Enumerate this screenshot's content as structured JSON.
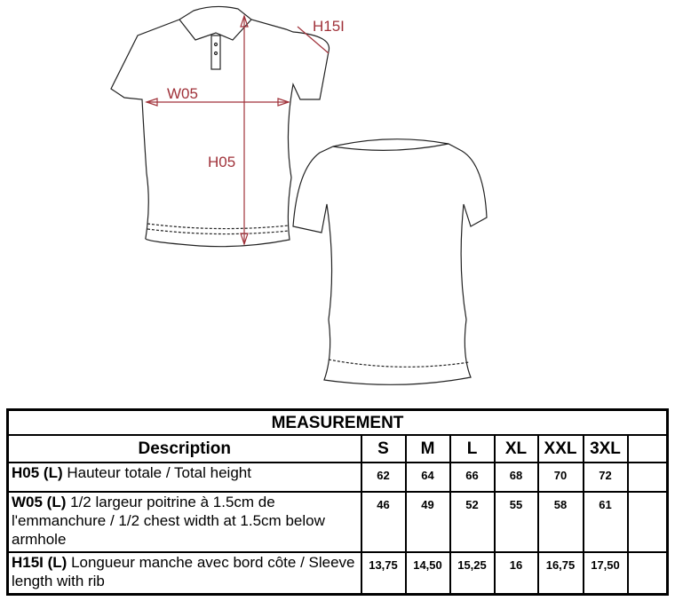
{
  "labels": {
    "h05": "H05",
    "w05": "W05",
    "h15l": "H15I"
  },
  "colors": {
    "measure": "#a0323a"
  },
  "table": {
    "title": "MEASUREMENT",
    "desc_header": "Description",
    "sizes": [
      "S",
      "M",
      "L",
      "XL",
      "XXL",
      "3XL",
      ""
    ],
    "rows": [
      {
        "code": "H05 (L)",
        "desc": " Hauteur totale / Total height",
        "values": [
          "62",
          "64",
          "66",
          "68",
          "70",
          "72",
          ""
        ]
      },
      {
        "code": "W05 (L)",
        "desc": " 1/2 largeur poitrine à 1.5cm de l'emmanchure / 1/2 chest width at 1.5cm below armhole",
        "values": [
          "46",
          "49",
          "52",
          "55",
          "58",
          "61",
          ""
        ]
      },
      {
        "code": "H15I (L)",
        "desc": " Longueur manche avec bord côte / Sleeve length with rib",
        "values": [
          "13,75",
          "14,50",
          "15,25",
          "16",
          "16,75",
          "17,50",
          ""
        ]
      }
    ]
  }
}
